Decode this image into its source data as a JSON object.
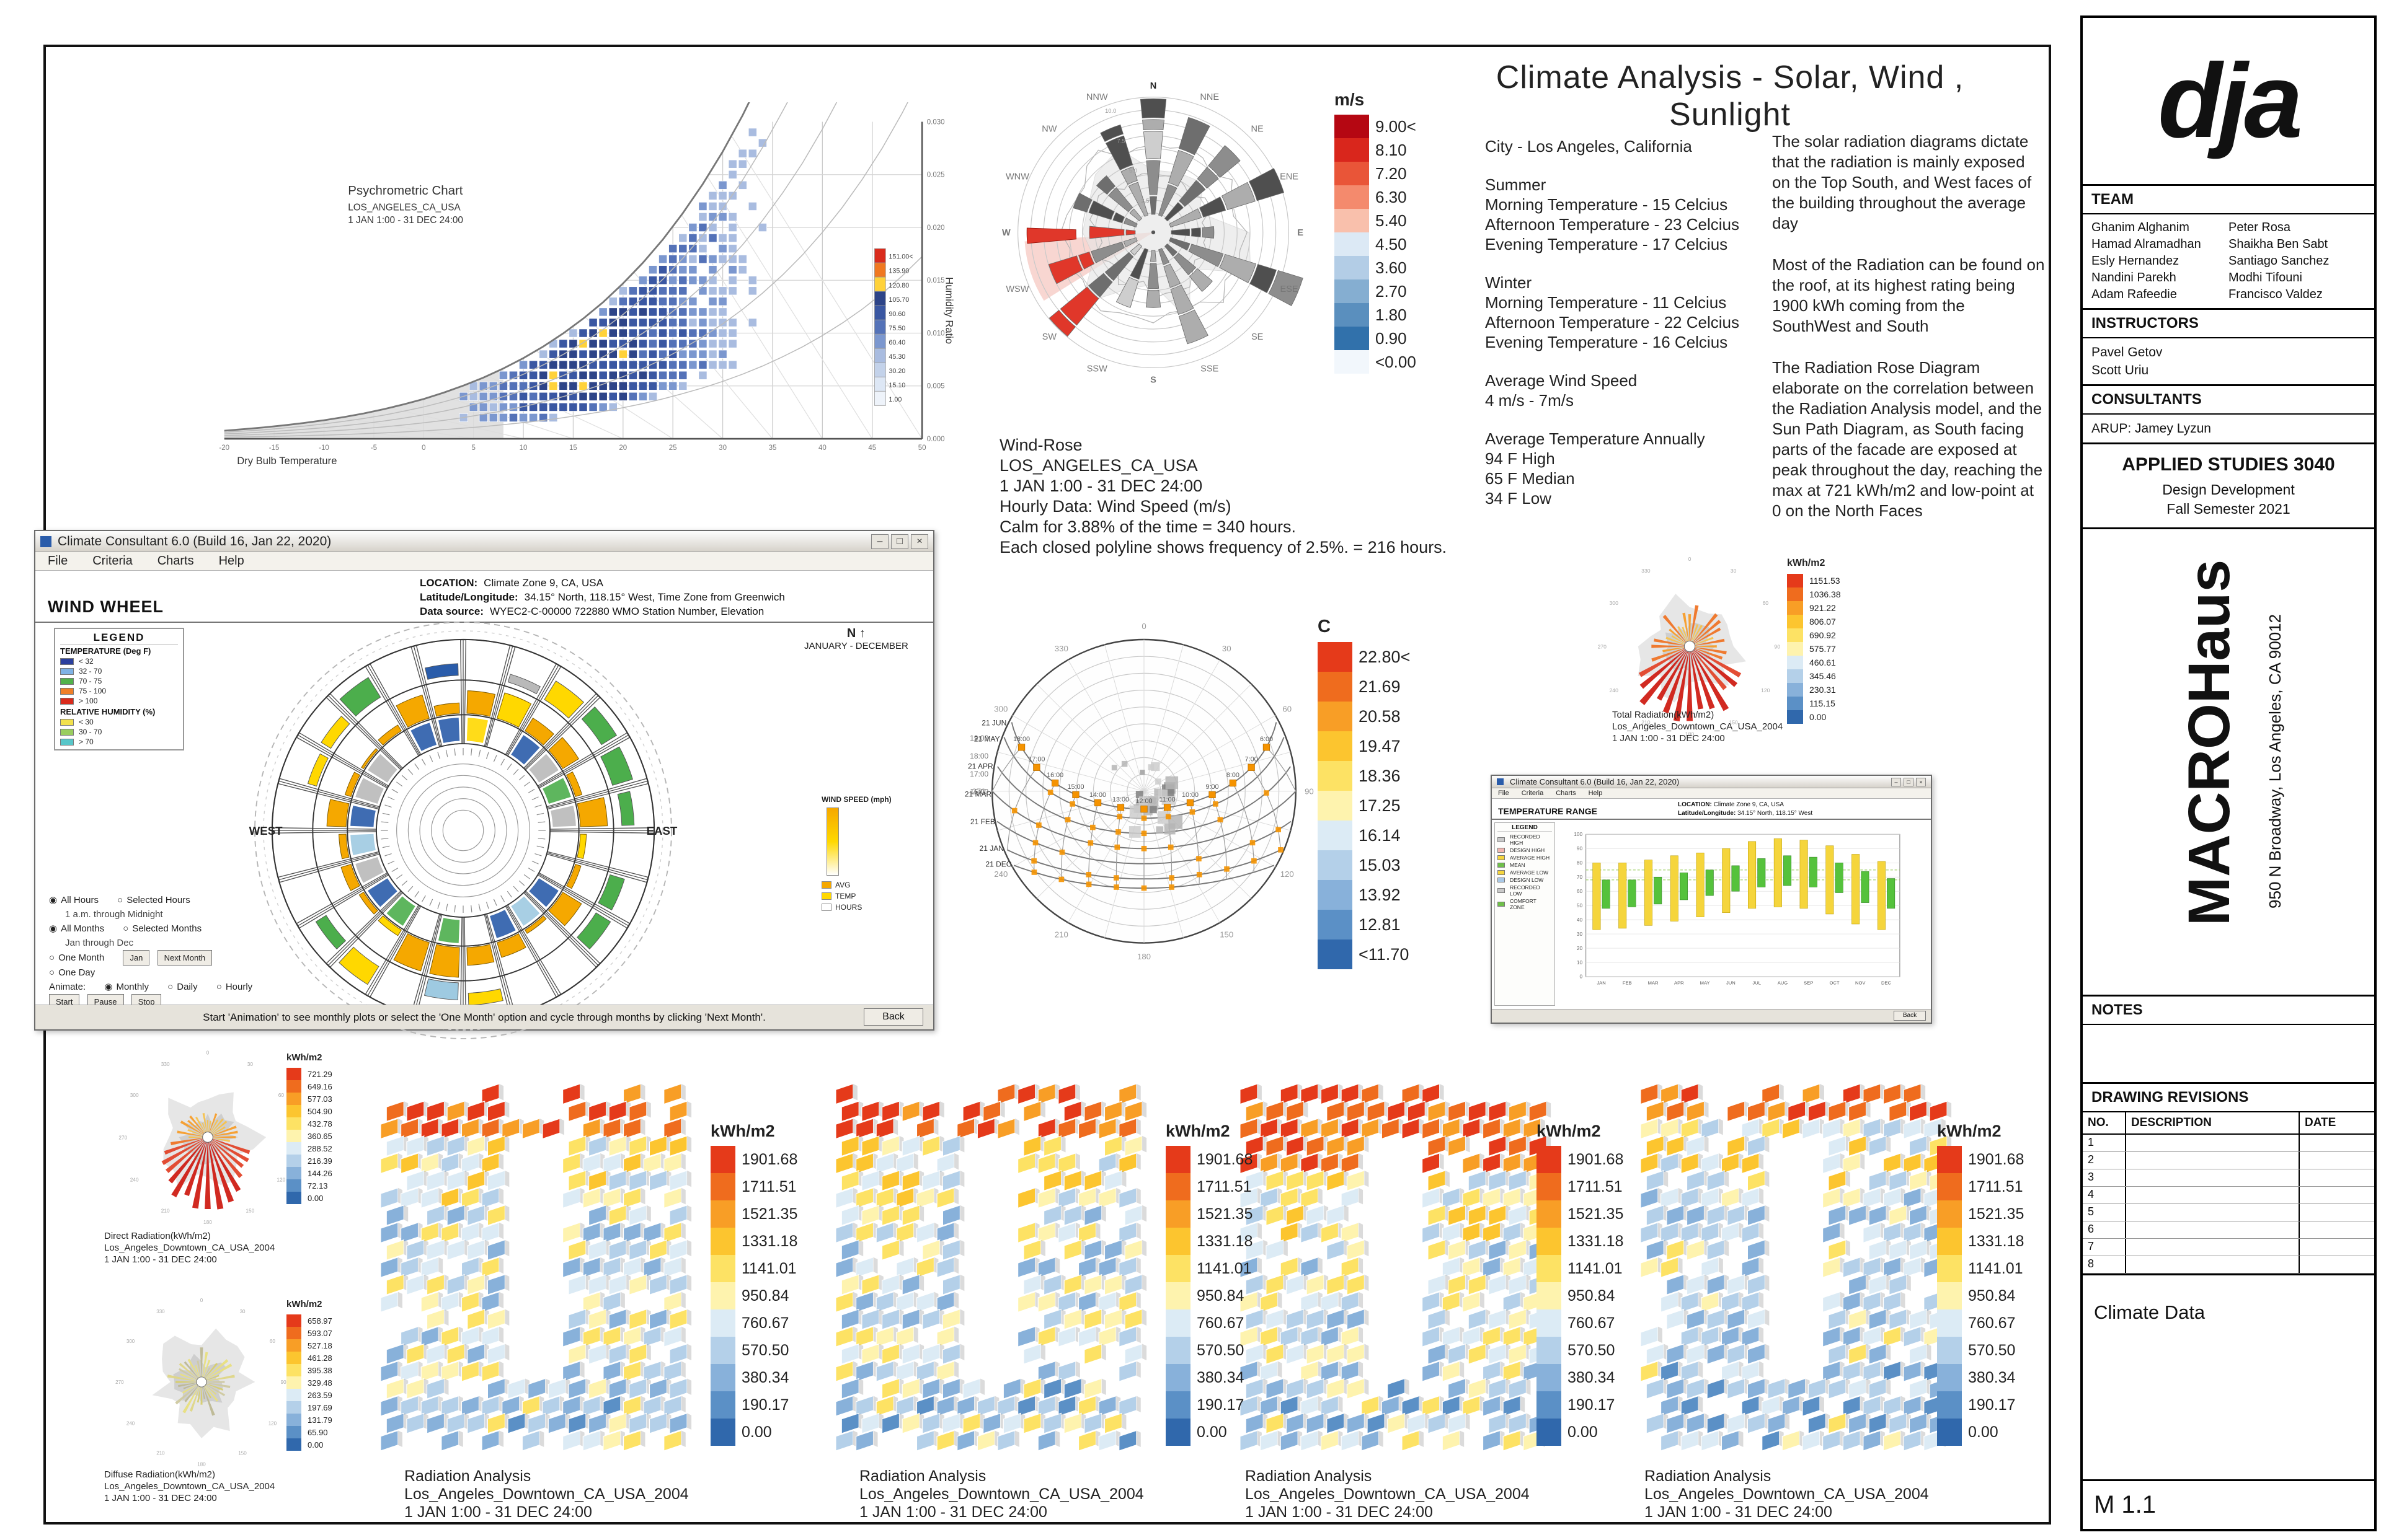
{
  "header": {
    "title": "Climate Analysis - Solar, Wind , Sunlight"
  },
  "title_block": {
    "logo_text": "dja",
    "team_label": "TEAM",
    "team_col1": [
      "Ghanim Alghanim",
      "Hamad Alramadhan",
      "Esly Hernandez",
      "Nandini Parekh",
      "Adam Rafeedie"
    ],
    "team_col2": [
      "Peter Rosa",
      "Shaikha Ben Sabt",
      "Santiago Sanchez",
      "Modhi Tifouni",
      "Francisco Valdez"
    ],
    "instructors_label": "INSTRUCTORS",
    "instructors": [
      "Pavel Getov",
      "Scott Uriu"
    ],
    "consultants_label": "CONSULTANTS",
    "consultants": [
      "ARUP: Jamey Lyzun"
    ],
    "course_title": "APPLIED STUDIES 3040",
    "course_sub1": "Design Development",
    "course_sub2": "Fall Semester 2021",
    "project_name": "MACROHaus",
    "project_address": "950 N Broadway, Los Angeles, CA 90012",
    "notes_label": "NOTES",
    "revisions_label": "DRAWING REVISIONS",
    "revisions_cols": [
      "NO.",
      "DESCRIPTION",
      "DATE"
    ],
    "revisions_rows": [
      "1",
      "2",
      "3",
      "4",
      "5",
      "6",
      "7",
      "8"
    ],
    "sheet_name": "Climate Data",
    "sheet_number": "M 1.1"
  },
  "climate_info": {
    "city": "City - Los Angeles, California",
    "summer_label": "Summer",
    "summer_lines": [
      "Morning Temperature - 15 Celcius",
      "Afternoon Temperature - 23 Celcius",
      "Evening Temperature - 17 Celcius"
    ],
    "winter_label": "Winter",
    "winter_lines": [
      "Morning Temperature - 11 Celcius",
      "Afternoon Temperature - 22 Celcius",
      "Evening Temperature - 16 Celcius"
    ],
    "wind_label": "Average Wind Speed",
    "wind_value": "4 m/s - 7m/s",
    "temp_label": "Average Temperature Annually",
    "temp_lines": [
      "94 F High",
      "65 F Median",
      "34 F Low"
    ]
  },
  "analysis_notes": {
    "para1": "The solar radiation diagrams dictate that the radiation is mainly exposed on the Top South, and West faces of the building throughout the average day",
    "para2": "Most of the Radiation can be found on the roof, at its highest rating being 1900 kWh coming from the SouthWest and South",
    "para3": "The Radiation Rose Diagram elaborate on the correlation between the Radiation Analysis model, and the Sun Path Diagram, as South facing parts of the facade are exposed at peak throughout the day, reaching the max at 721 kWh/m2 and low-point at 0 on the North Faces"
  },
  "psychro": {
    "title": "Psychrometric Chart",
    "subtitle1": "LOS_ANGELES_CA_USA",
    "subtitle2": "1 JAN 1:00 - 31 DEC 24:00",
    "xlabel": "Dry Bulb Temperature",
    "ylabel": "Humidity Ratio",
    "legend_labels": [
      "151.00<",
      "135.90",
      "120.80",
      "105.70",
      "90.60",
      "75.50",
      "60.40",
      "45.30",
      "30.20",
      "15.10",
      "1.00"
    ]
  },
  "wind_rose": {
    "caption": [
      "Wind-Rose",
      "LOS_ANGELES_CA_USA",
      "1 JAN 1:00 - 31 DEC 24:00",
      "Hourly Data: Wind Speed (m/s)",
      "Calm for 3.88% of the time = 340 hours.",
      "Each closed polyline shows frequency of 2.5%. = 216 hours."
    ],
    "legend_unit": "m/s",
    "legend_labels": [
      "9.00<",
      "8.10",
      "7.20",
      "6.30",
      "5.40",
      "4.50",
      "3.60",
      "2.70",
      "1.80",
      "0.90",
      "<0.00"
    ],
    "compass": [
      "N",
      "NNE",
      "NE",
      "ENE",
      "E",
      "ESE",
      "SE",
      "SSE",
      "S",
      "SSW",
      "SW",
      "WSW",
      "W",
      "WNW",
      "NW",
      "NNW"
    ]
  },
  "wind_wheel_window": {
    "title": "Climate Consultant 6.0 (Build 16, Jan 22, 2020)",
    "menu": [
      "File",
      "Criteria",
      "Charts",
      "Help"
    ],
    "chart_name": "WIND WHEEL",
    "location_label": "LOCATION:",
    "location_value": "Climate Zone 9, CA, USA",
    "latlong_label": "Latitude/Longitude:",
    "latlong_value": "34.15° North, 118.15° West, Time Zone from Greenwich",
    "source_label": "Data source:",
    "source_value": "WYEC2-C-00000    722880 WMO Station Number, Elevation",
    "legend_title": "LEGEND",
    "temp_label": "TEMPERATURE (Deg F)",
    "temp_rows": [
      {
        "label": "< 32",
        "color": "#2a3f9e"
      },
      {
        "label": "32 - 70",
        "color": "#7fb2e5"
      },
      {
        "label": "70 - 75",
        "color": "#52b24a"
      },
      {
        "label": "75 - 100",
        "color": "#f07f28"
      },
      {
        "label": "> 100",
        "color": "#d92b1c"
      }
    ],
    "rh_label": "RELATIVE HUMIDITY (%)",
    "rh_rows": [
      {
        "label": "< 30",
        "color": "#f2e14c"
      },
      {
        "label": "30 - 70",
        "color": "#9acd5f"
      },
      {
        "label": "> 70",
        "color": "#58c6c9"
      }
    ],
    "west_label": "WEST",
    "east_label": "EAST",
    "north_label": "N",
    "months_label": "JANUARY - DECEMBER",
    "side_panel": {
      "wind_speed": "WIND SPEED (mph)",
      "avg": "AVG",
      "temp": "TEMP",
      "hours": "HOURS"
    },
    "controls": {
      "all_hours": "All Hours",
      "selected_hours": "Selected Hours",
      "hours_range": "1 a.m.   through   Midnight",
      "all_months": "All Months",
      "selected_months": "Selected Months",
      "months_range": "Jan   through   Dec",
      "one_month": "One Month",
      "month_value": "Jan",
      "next_month": "Next Month",
      "one_day": "One Day",
      "animate": "Animate:",
      "monthly": "Monthly",
      "daily": "Daily",
      "hourly": "Hourly",
      "start": "Start",
      "pause": "Pause",
      "stop": "Stop"
    },
    "status_text": "Start 'Animation' to see monthly plots or select the 'One Month' option and cycle through months by clicking 'Next Month'.",
    "back_button": "Back"
  },
  "sun_path": {
    "legend_unit": "C",
    "legend_labels": [
      "22.80<",
      "21.69",
      "20.58",
      "19.47",
      "18.36",
      "17.25",
      "16.14",
      "15.03",
      "13.92",
      "12.81",
      "<11.70"
    ],
    "date_labels": [
      "21 JUN",
      "21 MAY",
      "21 APR",
      "21 MAR",
      "21 FEB",
      "21 JAN",
      "21 DEC"
    ],
    "left_times": [
      "19:00",
      "18:00",
      "17:00",
      "16:00"
    ],
    "hour_labels": [
      "6:00",
      "7:00",
      "8:00",
      "9:00",
      "10:00",
      "11:00",
      "12:00",
      "13:00",
      "14:00",
      "15:00",
      "16:00",
      "17:00",
      "18:00"
    ]
  },
  "total_radiation": {
    "caption": [
      "Total Radiation(kWh/m2)",
      "Los_Angeles_Downtown_CA_USA_2004",
      "1 JAN 1:00 - 31 DEC 24:00"
    ],
    "legend_unit": "kWh/m2",
    "legend_labels": [
      "1151.53",
      "1036.38",
      "921.22",
      "806.07",
      "690.92",
      "575.77",
      "460.61",
      "345.46",
      "230.31",
      "115.15",
      "0.00"
    ]
  },
  "direct_radiation": {
    "caption": [
      "Direct Radiation(kWh/m2)",
      "Los_Angeles_Downtown_CA_USA_2004",
      "1 JAN 1:00 - 31 DEC 24:00"
    ],
    "legend_unit": "kWh/m2",
    "legend_labels": [
      "721.29",
      "649.16",
      "577.03",
      "504.90",
      "432.78",
      "360.65",
      "288.52",
      "216.39",
      "144.26",
      "72.13",
      "0.00"
    ]
  },
  "diffuse_radiation": {
    "caption": [
      "Diffuse Radiation(kWh/m2)",
      "Los_Angeles_Downtown_CA_USA_2004",
      "1 JAN 1:00 - 31 DEC 24:00"
    ],
    "legend_unit": "kWh/m2",
    "legend_labels": [
      "658.97",
      "593.07",
      "527.18",
      "461.28",
      "395.38",
      "329.48",
      "263.59",
      "197.69",
      "131.79",
      "65.90",
      "0.00"
    ]
  },
  "radiation_models": {
    "caption": [
      "Radiation Analysis",
      "Los_Angeles_Downtown_CA_USA_2004",
      "1 JAN 1:00 - 31 DEC 24:00"
    ],
    "legend_unit": "kWh/m2",
    "legend_labels": [
      "1901.68",
      "1711.51",
      "1521.35",
      "1331.18",
      "1141.01",
      "950.84",
      "760.67",
      "570.50",
      "380.34",
      "190.17",
      "0.00"
    ]
  },
  "temp_range_window": {
    "title": "Climate Consultant 6.0 (Build 16, Jan 22, 2020)",
    "menu": [
      "File",
      "Criteria",
      "Charts",
      "Help"
    ],
    "chart_name": "TEMPERATURE RANGE",
    "location_label": "LOCATION:",
    "location_value": "Climate Zone 9, CA, USA",
    "latlong_label": "Latitude/Longitude:",
    "latlong_value": "34.15° North, 118.15° West",
    "legend_title": "LEGEND",
    "legend_rows": [
      {
        "label": "RECORDED HIGH",
        "color": "#c9c9c9"
      },
      {
        "label": "DESIGN HIGH",
        "color": "#f2b6b0"
      },
      {
        "label": "AVERAGE HIGH",
        "color": "#f5d53c"
      },
      {
        "label": "MEAN",
        "color": "#6fbf4a"
      },
      {
        "label": "AVERAGE LOW",
        "color": "#f5d53c"
      },
      {
        "label": "DESIGN LOW",
        "color": "#a8c8e6"
      },
      {
        "label": "RECORDED LOW",
        "color": "#c9c9c9"
      },
      {
        "label": "COMFORT ZONE",
        "color": "#6fbf4a"
      }
    ],
    "months": [
      "JAN",
      "FEB",
      "MAR",
      "APR",
      "MAY",
      "JUN",
      "JUL",
      "AUG",
      "SEP",
      "OCT",
      "NOV",
      "DEC"
    ],
    "back_button": "Back",
    "chart_data": {
      "type": "bar",
      "highs": [
        68,
        68,
        70,
        73,
        75,
        78,
        83,
        85,
        84,
        80,
        74,
        69
      ],
      "lows": [
        48,
        49,
        51,
        54,
        57,
        60,
        63,
        64,
        63,
        59,
        52,
        48
      ],
      "comfort_low": 68,
      "comfort_high": 75
    }
  },
  "palettes": {
    "speed": [
      "#b50712",
      "#d9261c",
      "#e95538",
      "#f48a6d",
      "#f9c0ac",
      "#dce9f5",
      "#b3cde6",
      "#85aed1",
      "#5a8fbe",
      "#3171ab",
      "#f2f7fc"
    ],
    "thermal": [
      "#e53a1a",
      "#ef6c1e",
      "#f89e26",
      "#fcc52f",
      "#fde264",
      "#fef3ae",
      "#dcebf5",
      "#b4d0e9",
      "#88b1da",
      "#5b90c6",
      "#3068ac"
    ],
    "grays": [
      "#4f4f4f",
      "#6e6e6e",
      "#8d8d8d",
      "#adadad",
      "#cecece"
    ]
  }
}
